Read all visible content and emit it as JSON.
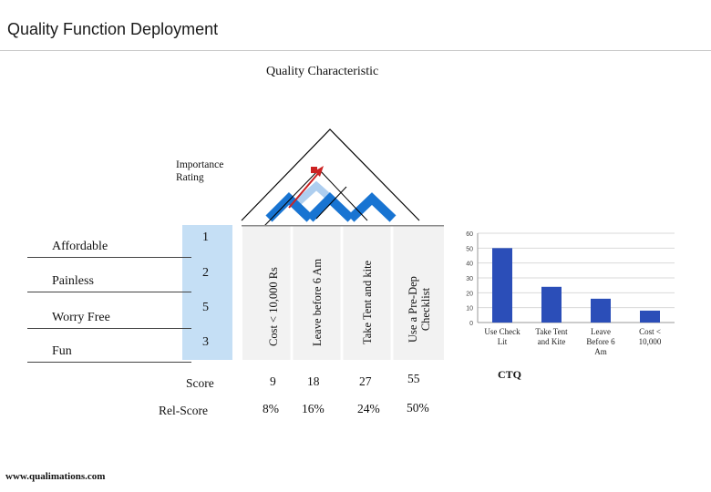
{
  "header": {
    "title": "Quality Function Deployment"
  },
  "matrix": {
    "characteristic_label": "Quality Characteristic",
    "importance_label_line1": "Importance",
    "importance_label_line2": "Rating",
    "requirements": [
      {
        "label": "Affordable",
        "rating": "1"
      },
      {
        "label": "Painless",
        "rating": "2"
      },
      {
        "label": "Worry Free",
        "rating": "5"
      },
      {
        "label": "Fun",
        "rating": "3"
      }
    ],
    "characteristics": [
      {
        "line1": "Cost < 10,000 Rs",
        "line2": ""
      },
      {
        "line1": "Leave before 6 Am",
        "line2": ""
      },
      {
        "line1": "Take Tent and kite",
        "line2": ""
      },
      {
        "line1": "Use a Pre-Dep",
        "line2": "Checklist"
      }
    ],
    "score_label": "Score",
    "rel_score_label": "Rel-Score",
    "scores": [
      "9",
      "18",
      "27",
      "55"
    ],
    "rel_scores": [
      "8%",
      "16%",
      "24%",
      "50%"
    ],
    "colors": {
      "roof": "#1874d2",
      "rating_bg": "#c5dff5",
      "bar": "#2b4eb8",
      "arrow": "#cc2222"
    }
  },
  "chart_data": {
    "type": "bar",
    "categories": [
      {
        "line1": "Use Check",
        "line2": "Lit"
      },
      {
        "line1": "Take Tent",
        "line2": "and Kite"
      },
      {
        "line1": "Leave",
        "line2": "Before 6",
        "line3": "Am"
      },
      {
        "line1": "Cost <",
        "line2": "10,000"
      }
    ],
    "values": [
      50,
      24,
      16,
      8
    ],
    "ylim": [
      0,
      60
    ],
    "yticks": [
      "0",
      "10",
      "20",
      "30",
      "40",
      "50",
      "60"
    ],
    "xlabel": "CTQ",
    "grid": true
  },
  "footer": {
    "url": "www.qualimations.com"
  }
}
